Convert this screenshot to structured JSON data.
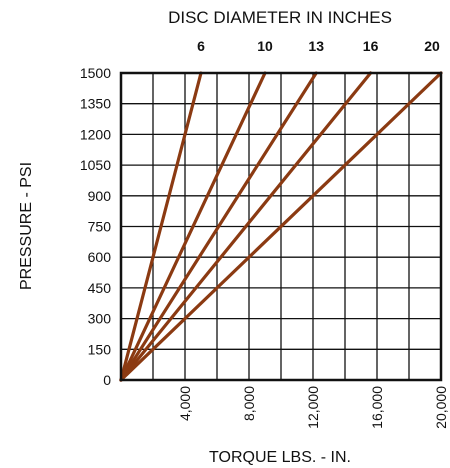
{
  "chart_data": {
    "type": "line",
    "title": "DISC DIAMETER IN INCHES",
    "xlabel": "TORQUE LBS. - IN.",
    "ylabel": "PRESSURE - PSI",
    "xlim": [
      0,
      20000
    ],
    "ylim": [
      0,
      1500
    ],
    "x_ticks": [
      "4,000",
      "8,000",
      "12,000",
      "16,000",
      "20,000"
    ],
    "x_tick_values": [
      4000,
      8000,
      12000,
      16000,
      20000
    ],
    "y_ticks": [
      "0",
      "150",
      "300",
      "450",
      "600",
      "750",
      "900",
      "1050",
      "1200",
      "1350",
      "1500"
    ],
    "y_tick_values": [
      0,
      150,
      300,
      450,
      600,
      750,
      900,
      1050,
      1200,
      1350,
      1500
    ],
    "grid": true,
    "grid_x_values": [
      0,
      2000,
      4000,
      6000,
      8000,
      10000,
      12000,
      14000,
      16000,
      18000,
      20000
    ],
    "line_color": "#8b3a12",
    "series": [
      {
        "name": "6",
        "x": [
          0,
          5000
        ],
        "y": [
          0,
          1500
        ]
      },
      {
        "name": "10",
        "x": [
          0,
          9000
        ],
        "y": [
          0,
          1500
        ]
      },
      {
        "name": "13",
        "x": [
          0,
          12200
        ],
        "y": [
          0,
          1500
        ]
      },
      {
        "name": "16",
        "x": [
          0,
          15600
        ],
        "y": [
          0,
          1500
        ]
      },
      {
        "name": "20",
        "x": [
          0,
          20000
        ],
        "y": [
          0,
          1500
        ]
      }
    ]
  }
}
